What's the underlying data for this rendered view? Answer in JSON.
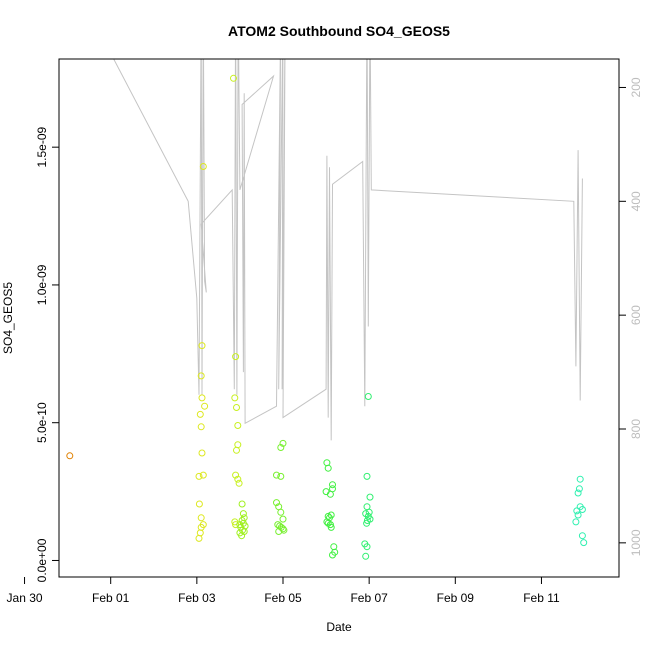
{
  "chart_data": {
    "type": "scatter",
    "title": "ATOM2 Southbound SO4_GEOS5",
    "xlabel": "Date",
    "ylabel": "SO4_GEOS5",
    "x_ticks": [
      "Jan 30",
      "Feb 01",
      "Feb 03",
      "Feb 05",
      "Feb 07",
      "Feb 09",
      "Feb 11"
    ],
    "y_ticks": [
      "0.0e+00",
      "5.0e-10",
      "1.0e-09",
      "1.5e-09"
    ],
    "y_tick_values": [
      0,
      5e-10,
      1e-09,
      1.5e-09
    ],
    "y2_ticks": [
      "200",
      "400",
      "600",
      "800",
      "1000"
    ],
    "y2_tick_values": [
      200,
      400,
      600,
      800,
      1000
    ],
    "xlim_days": [
      -1.2,
      11.8
    ],
    "ylim": [
      -6e-11,
      1.82e-09
    ],
    "y2lim": [
      1060,
      150
    ],
    "y2_axis": "pressure (reversed), grey line",
    "points": [
      [
        -0.95,
        3.8e-10,
        "#e08000"
      ],
      [
        2.05,
        3.05e-10,
        "#dde820"
      ],
      [
        2.08,
        5.3e-10,
        "#dde820"
      ],
      [
        2.1,
        4.85e-10,
        "#dde820"
      ],
      [
        2.12,
        3.9e-10,
        "#dde820"
      ],
      [
        2.06,
        2.05e-10,
        "#dde820"
      ],
      [
        2.1,
        1.55e-10,
        "#dde820"
      ],
      [
        2.15,
        1.3e-10,
        "#dde820"
      ],
      [
        2.1,
        1.2e-10,
        "#dde820"
      ],
      [
        2.08,
        1e-10,
        "#dde820"
      ],
      [
        2.05,
        8e-11,
        "#dde820"
      ],
      [
        2.15,
        3.1e-10,
        "#dde820"
      ],
      [
        2.12,
        5.9e-10,
        "#dde820"
      ],
      [
        2.18,
        5.6e-10,
        "#dde820"
      ],
      [
        2.1,
        6.7e-10,
        "#dde820"
      ],
      [
        2.12,
        7.8e-10,
        "#dde820"
      ],
      [
        2.15,
        1.43e-09,
        "#dde820"
      ],
      [
        2.85,
        1.75e-09,
        "#c8f020"
      ],
      [
        2.9,
        7.4e-10,
        "#c8f020"
      ],
      [
        2.88,
        5.9e-10,
        "#c8f020"
      ],
      [
        2.92,
        5.55e-10,
        "#c8f020"
      ],
      [
        2.95,
        4.9e-10,
        "#c8f020"
      ],
      [
        2.95,
        4.2e-10,
        "#c8f020"
      ],
      [
        2.92,
        4e-10,
        "#c8f020"
      ],
      [
        2.9,
        3.1e-10,
        "#c8f020"
      ],
      [
        2.95,
        2.95e-10,
        "#c8f020"
      ],
      [
        2.98,
        2.8e-10,
        "#c8f020"
      ],
      [
        2.88,
        1.4e-10,
        "#c8f020"
      ],
      [
        2.9,
        1.3e-10,
        "#c8f020"
      ],
      [
        3.05,
        2.05e-10,
        "#a0f020"
      ],
      [
        3.08,
        1.7e-10,
        "#a0f020"
      ],
      [
        3.1,
        1.55e-10,
        "#a0f020"
      ],
      [
        3.05,
        1.45e-10,
        "#a0f020"
      ],
      [
        3.0,
        1.3e-10,
        "#a0f020"
      ],
      [
        3.02,
        1.2e-10,
        "#a0f020"
      ],
      [
        3.06,
        1.1e-10,
        "#a0f020"
      ],
      [
        3.1,
        1.05e-10,
        "#a0f020"
      ],
      [
        3.0,
        1e-10,
        "#a0f020"
      ],
      [
        3.04,
        9e-11,
        "#a0f020"
      ],
      [
        3.12,
        1.25e-10,
        "#a0f020"
      ],
      [
        3.08,
        1.35e-10,
        "#a0f020"
      ],
      [
        3.85,
        3.1e-10,
        "#78f030"
      ],
      [
        3.95,
        3.05e-10,
        "#78f030"
      ],
      [
        3.95,
        4.1e-10,
        "#78f030"
      ],
      [
        4.0,
        4.25e-10,
        "#78f030"
      ],
      [
        3.85,
        2.1e-10,
        "#78f030"
      ],
      [
        3.9,
        1.95e-10,
        "#78f030"
      ],
      [
        3.95,
        1.75e-10,
        "#78f030"
      ],
      [
        4.0,
        1.5e-10,
        "#78f030"
      ],
      [
        3.88,
        1.3e-10,
        "#78f030"
      ],
      [
        3.92,
        1.25e-10,
        "#78f030"
      ],
      [
        3.96,
        1.2e-10,
        "#78f030"
      ],
      [
        4.0,
        1.15e-10,
        "#78f030"
      ],
      [
        4.02,
        1.1e-10,
        "#78f030"
      ],
      [
        3.9,
        1.05e-10,
        "#78f030"
      ],
      [
        5.02,
        3.55e-10,
        "#40f040"
      ],
      [
        5.05,
        3.35e-10,
        "#40f040"
      ],
      [
        5.0,
        2.5e-10,
        "#40f040"
      ],
      [
        5.1,
        2.4e-10,
        "#40f040"
      ],
      [
        5.15,
        2.75e-10,
        "#40f040"
      ],
      [
        5.15,
        2.6e-10,
        "#40f040"
      ],
      [
        5.05,
        1.6e-10,
        "#40f040"
      ],
      [
        5.08,
        1.55e-10,
        "#40f040"
      ],
      [
        5.12,
        1.65e-10,
        "#40f040"
      ],
      [
        5.02,
        1.4e-10,
        "#40f040"
      ],
      [
        5.05,
        1.35e-10,
        "#40f040"
      ],
      [
        5.1,
        1.3e-10,
        "#40f040"
      ],
      [
        5.12,
        1.2e-10,
        "#40f040"
      ],
      [
        5.18,
        5e-11,
        "#40f040"
      ],
      [
        5.2,
        3e-11,
        "#40f040"
      ],
      [
        5.15,
        2e-11,
        "#40f040"
      ],
      [
        5.98,
        5.95e-10,
        "#30f070"
      ],
      [
        5.95,
        3.05e-10,
        "#30f070"
      ],
      [
        6.02,
        2.3e-10,
        "#30f070"
      ],
      [
        5.95,
        1.95e-10,
        "#30f070"
      ],
      [
        6.0,
        1.75e-10,
        "#30f070"
      ],
      [
        5.92,
        1.7e-10,
        "#30f070"
      ],
      [
        5.98,
        1.6e-10,
        "#30f070"
      ],
      [
        6.02,
        1.5e-10,
        "#30f070"
      ],
      [
        5.96,
        1.45e-10,
        "#30f070"
      ],
      [
        5.94,
        1.35e-10,
        "#30f070"
      ],
      [
        5.9,
        6e-11,
        "#30f070"
      ],
      [
        5.95,
        5e-11,
        "#30f070"
      ],
      [
        5.92,
        1.5e-11,
        "#30f070"
      ],
      [
        10.9,
        2.95e-10,
        "#30f0b0"
      ],
      [
        10.88,
        2.6e-10,
        "#30f0b0"
      ],
      [
        10.85,
        2.45e-10,
        "#30f0b0"
      ],
      [
        10.9,
        1.95e-10,
        "#30f0b0"
      ],
      [
        10.95,
        1.85e-10,
        "#30f0b0"
      ],
      [
        10.82,
        1.8e-10,
        "#30f0b0"
      ],
      [
        10.85,
        1.65e-10,
        "#30f0b0"
      ],
      [
        10.8,
        1.4e-10,
        "#30f0b0"
      ],
      [
        10.95,
        9e-11,
        "#30f0b0"
      ],
      [
        10.98,
        6.5e-11,
        "#30f0b0"
      ]
    ],
    "pressure_track": [
      [
        -1.2,
        80
      ],
      [
        0.0,
        140
      ],
      [
        1.8,
        400
      ],
      [
        2.0,
        570
      ],
      [
        2.05,
        740
      ],
      [
        2.1,
        60
      ],
      [
        2.12,
        740
      ],
      [
        2.15,
        60
      ],
      [
        2.18,
        540
      ],
      [
        2.22,
        560
      ],
      [
        2.1,
        440
      ],
      [
        2.82,
        380
      ],
      [
        2.87,
        730
      ],
      [
        2.9,
        60
      ],
      [
        2.93,
        740
      ],
      [
        2.96,
        60
      ],
      [
        3.0,
        380
      ],
      [
        3.78,
        180
      ],
      [
        3.05,
        230
      ],
      [
        3.08,
        700
      ],
      [
        3.1,
        210
      ],
      [
        3.12,
        790
      ],
      [
        3.85,
        760
      ],
      [
        3.95,
        60
      ],
      [
        3.9,
        730
      ],
      [
        4.0,
        60
      ],
      [
        3.98,
        730
      ],
      [
        4.05,
        60
      ],
      [
        4.0,
        780
      ],
      [
        5.0,
        730
      ],
      [
        5.02,
        320
      ],
      [
        5.05,
        780
      ],
      [
        5.08,
        340
      ],
      [
        5.12,
        820
      ],
      [
        5.15,
        370
      ],
      [
        5.85,
        330
      ],
      [
        5.9,
        760
      ],
      [
        5.95,
        60
      ],
      [
        5.98,
        620
      ],
      [
        6.02,
        60
      ],
      [
        6.05,
        380
      ],
      [
        10.75,
        400
      ],
      [
        10.8,
        690
      ],
      [
        10.85,
        310
      ],
      [
        10.9,
        750
      ],
      [
        10.95,
        360
      ]
    ]
  }
}
